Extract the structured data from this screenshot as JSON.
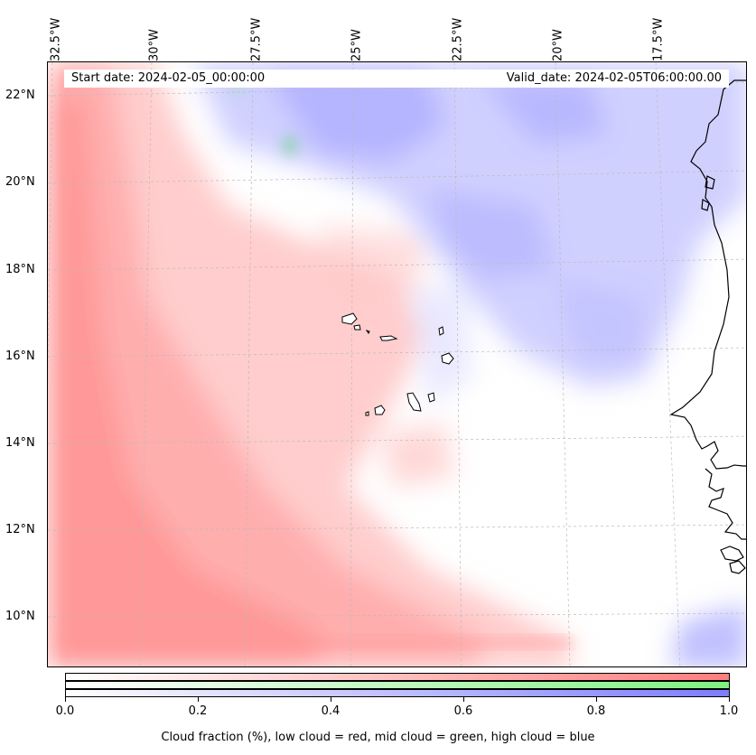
{
  "map": {
    "start_date": "Start date: 2024-02-05_00:00:00",
    "valid_date": "Valid_date: 2024-02-05T06:00:00.00",
    "lon_labels": [
      "32.5°W",
      "30°W",
      "27.5°W",
      "25°W",
      "22.5°W",
      "20°W",
      "17.5°W"
    ],
    "lat_labels": [
      "22°N",
      "20°N",
      "18°N",
      "16°N",
      "14°N",
      "12°N",
      "10°N"
    ],
    "colors": {
      "low_cloud": "#ff8080",
      "mid_cloud": "#80f080",
      "high_cloud": "#8080ff",
      "coastline": "#000000"
    }
  },
  "colorbar": {
    "ticks": [
      "0.0",
      "0.2",
      "0.4",
      "0.6",
      "0.8",
      "1.0"
    ],
    "title": "Cloud fraction (%), low cloud = red, mid cloud = green, high cloud = blue"
  }
}
